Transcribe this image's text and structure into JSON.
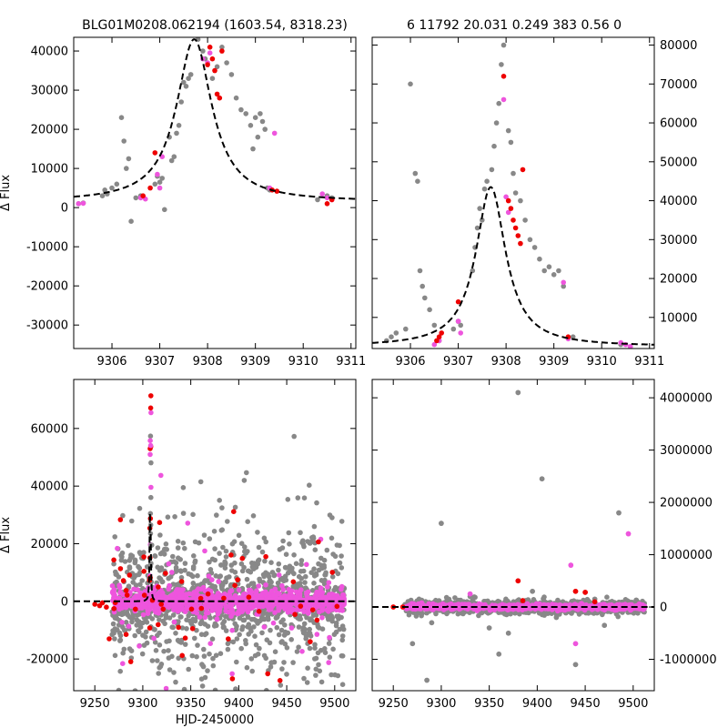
{
  "header": {
    "left_title": "BLG01M0208.062194 (1603.54, 8318.23)",
    "right_title": "6 11792 20.031 0.249 383  0.56    0"
  },
  "colors": {
    "gray": "#888888",
    "red": "#ee0000",
    "magenta": "#ee55dd",
    "model": "#000000"
  },
  "chart_data": [
    {
      "id": "top-left",
      "type": "scatter",
      "title": "BLG01M0208.062194 (1603.54, 8318.23)",
      "xlabel": "",
      "ylabel": "Δ Flux",
      "xlim": [
        9305.2,
        9311.1
      ],
      "ylim": [
        -36000,
        43500
      ],
      "xticks": [
        9306,
        9307,
        9308,
        9309,
        9310,
        9311
      ],
      "yticks": [
        -30000,
        -20000,
        -10000,
        0,
        10000,
        20000,
        30000,
        40000
      ],
      "yaxis_side": "left",
      "model": {
        "t0": 9307.72,
        "peak": 43000,
        "base": 1500,
        "width": 0.45
      },
      "series": [
        {
          "name": "gray",
          "points": [
            [
              9305.3,
              1000
            ],
            [
              9305.4,
              1200
            ],
            [
              9305.8,
              3000
            ],
            [
              9305.85,
              4500
            ],
            [
              9305.9,
              3500
            ],
            [
              9306.0,
              5000
            ],
            [
              9306.1,
              6000
            ],
            [
              9306.2,
              23000
            ],
            [
              9306.25,
              17000
            ],
            [
              9306.3,
              10000
            ],
            [
              9306.35,
              12500
            ],
            [
              9306.4,
              -3500
            ],
            [
              9306.5,
              2500
            ],
            [
              9306.6,
              3000
            ],
            [
              9306.9,
              6000
            ],
            [
              9306.95,
              8000
            ],
            [
              9307.0,
              6500
            ],
            [
              9307.05,
              7500
            ],
            [
              9307.1,
              -500
            ],
            [
              9307.2,
              18000
            ],
            [
              9307.25,
              12000
            ],
            [
              9307.3,
              13000
            ],
            [
              9307.35,
              19000
            ],
            [
              9307.4,
              21000
            ],
            [
              9307.45,
              27000
            ],
            [
              9307.5,
              32000
            ],
            [
              9307.55,
              31000
            ],
            [
              9307.6,
              33000
            ],
            [
              9307.65,
              34000
            ],
            [
              9307.7,
              44000
            ],
            [
              9307.75,
              44000
            ],
            [
              9307.8,
              43000
            ],
            [
              9307.9,
              40000
            ],
            [
              9307.95,
              38000
            ],
            [
              9308.1,
              33000
            ],
            [
              9308.2,
              36000
            ],
            [
              9308.3,
              41000
            ],
            [
              9308.4,
              37000
            ],
            [
              9308.5,
              34000
            ],
            [
              9308.6,
              28000
            ],
            [
              9308.7,
              25000
            ],
            [
              9308.8,
              24000
            ],
            [
              9308.9,
              21000
            ],
            [
              9308.95,
              15000
            ],
            [
              9309.0,
              23000
            ],
            [
              9309.05,
              18000
            ],
            [
              9309.1,
              24000
            ],
            [
              9309.15,
              22000
            ],
            [
              9309.2,
              20000
            ],
            [
              9309.25,
              5000
            ],
            [
              9309.3,
              4500
            ],
            [
              9310.3,
              2000
            ],
            [
              9310.5,
              3000
            ],
            [
              9310.6,
              2500
            ]
          ]
        },
        {
          "name": "red",
          "points": [
            [
              9306.65,
              3000
            ],
            [
              9306.8,
              5000
            ],
            [
              9306.9,
              14000
            ],
            [
              9308.0,
              36500
            ],
            [
              9308.05,
              41000
            ],
            [
              9308.1,
              38000
            ],
            [
              9308.15,
              35000
            ],
            [
              9308.2,
              29000
            ],
            [
              9308.25,
              28000
            ],
            [
              9308.3,
              40000
            ],
            [
              9309.35,
              4500
            ],
            [
              9309.45,
              4200
            ],
            [
              9310.5,
              1000
            ],
            [
              9310.6,
              2000
            ]
          ]
        },
        {
          "name": "magenta",
          "points": [
            [
              9305.3,
              1000
            ],
            [
              9305.4,
              1100
            ],
            [
              9306.6,
              2500
            ],
            [
              9306.7,
              2200
            ],
            [
              9306.95,
              8500
            ],
            [
              9307.0,
              5000
            ],
            [
              9307.05,
              13000
            ],
            [
              9307.9,
              38000
            ],
            [
              9308.0,
              37000
            ],
            [
              9308.05,
              39500
            ],
            [
              9309.3,
              5000
            ],
            [
              9309.4,
              19000
            ],
            [
              9310.4,
              3500
            ],
            [
              9310.5,
              2500
            ],
            [
              9310.6,
              2000
            ]
          ]
        }
      ]
    },
    {
      "id": "top-right",
      "type": "scatter",
      "title": "6 11792 20.031 0.249 383  0.56    0",
      "xlabel": "",
      "ylabel": "",
      "xlim": [
        9305.2,
        9311.1
      ],
      "ylim": [
        2000,
        82000
      ],
      "xticks": [
        9306,
        9307,
        9308,
        9309,
        9310,
        9311
      ],
      "yticks": [
        10000,
        20000,
        30000,
        40000,
        50000,
        60000,
        70000,
        80000
      ],
      "yaxis_side": "right",
      "model": {
        "t0": 9307.68,
        "peak": 43500,
        "base": 2500,
        "width": 0.38
      },
      "series": [
        {
          "name": "gray",
          "points": [
            [
              9305.5,
              4000
            ],
            [
              9305.6,
              5000
            ],
            [
              9305.7,
              6000
            ],
            [
              9305.9,
              7000
            ],
            [
              9306.0,
              70000
            ],
            [
              9306.1,
              47000
            ],
            [
              9306.15,
              45000
            ],
            [
              9306.2,
              22000
            ],
            [
              9306.25,
              18000
            ],
            [
              9306.3,
              15000
            ],
            [
              9306.4,
              12000
            ],
            [
              9306.5,
              8000
            ],
            [
              9306.6,
              4000
            ],
            [
              9306.9,
              7000
            ],
            [
              9307.0,
              9000
            ],
            [
              9307.05,
              8000
            ],
            [
              9307.3,
              22000
            ],
            [
              9307.35,
              28000
            ],
            [
              9307.4,
              33000
            ],
            [
              9307.45,
              38000
            ],
            [
              9307.5,
              35000
            ],
            [
              9307.55,
              43000
            ],
            [
              9307.6,
              45000
            ],
            [
              9307.7,
              48000
            ],
            [
              9307.75,
              54000
            ],
            [
              9307.8,
              60000
            ],
            [
              9307.85,
              65000
            ],
            [
              9307.9,
              75000
            ],
            [
              9307.95,
              80000
            ],
            [
              9308.05,
              58000
            ],
            [
              9308.1,
              55000
            ],
            [
              9308.15,
              47000
            ],
            [
              9308.2,
              42000
            ],
            [
              9308.3,
              40000
            ],
            [
              9308.4,
              35000
            ],
            [
              9308.5,
              30000
            ],
            [
              9308.6,
              28000
            ],
            [
              9308.7,
              25000
            ],
            [
              9308.8,
              22000
            ],
            [
              9308.9,
              23000
            ],
            [
              9309.0,
              21000
            ],
            [
              9309.1,
              22000
            ],
            [
              9309.2,
              18000
            ],
            [
              9309.4,
              5000
            ],
            [
              9310.4,
              3000
            ],
            [
              9310.6,
              2500
            ]
          ]
        },
        {
          "name": "red",
          "points": [
            [
              9306.55,
              4000
            ],
            [
              9306.6,
              5000
            ],
            [
              9306.65,
              6000
            ],
            [
              9307.0,
              14000
            ],
            [
              9307.95,
              72000
            ],
            [
              9308.05,
              40000
            ],
            [
              9308.1,
              38000
            ],
            [
              9308.15,
              35000
            ],
            [
              9308.2,
              33000
            ],
            [
              9308.25,
              31000
            ],
            [
              9308.3,
              29000
            ],
            [
              9308.35,
              48000
            ],
            [
              9309.3,
              5000
            ]
          ]
        },
        {
          "name": "magenta",
          "points": [
            [
              9306.5,
              3000
            ],
            [
              9306.6,
              4000
            ],
            [
              9307.0,
              9000
            ],
            [
              9307.05,
              6000
            ],
            [
              9307.95,
              66000
            ],
            [
              9308.0,
              41000
            ],
            [
              9308.05,
              37000
            ],
            [
              9309.2,
              19000
            ],
            [
              9309.3,
              4500
            ],
            [
              9310.4,
              3500
            ],
            [
              9310.5,
              3000
            ],
            [
              9310.6,
              2500
            ]
          ]
        }
      ]
    },
    {
      "id": "bottom-left",
      "type": "scatter",
      "title": "",
      "xlabel": "HJD-2450000",
      "ylabel": "Δ Flux",
      "xlim": [
        9228,
        9522
      ],
      "ylim": [
        -31000,
        77000
      ],
      "xticks": [
        9250,
        9300,
        9350,
        9400,
        9450,
        9500
      ],
      "yticks": [
        -20000,
        0,
        20000,
        40000,
        60000
      ],
      "yaxis_side": "left",
      "model": {
        "t0": 9307.7,
        "peak": 43000,
        "base": 0,
        "width": 0.5
      },
      "x_range": [
        9268,
        9510
      ],
      "spike_t": 9308,
      "spike_points": 22,
      "spread": {
        "gray_sigma": 15000,
        "red_sigma": 12000,
        "magenta_sigma": 2000
      },
      "counts": {
        "gray": 1300,
        "red": 55,
        "magenta": 900
      },
      "early_red": [
        [
          9250,
          -1000
        ],
        [
          9255,
          -1500
        ],
        [
          9258,
          -500
        ],
        [
          9262,
          -2000
        ],
        [
          9265,
          -13000
        ],
        [
          9270,
          -2500
        ]
      ],
      "series_names": [
        "gray",
        "red",
        "magenta"
      ]
    },
    {
      "id": "bottom-right",
      "type": "scatter",
      "title": "",
      "xlabel": "",
      "ylabel": "",
      "xlim": [
        9228,
        9522
      ],
      "ylim": [
        -1600000,
        4350000
      ],
      "xticks": [
        9250,
        9300,
        9350,
        9400,
        9450,
        9500
      ],
      "yticks": [
        -1000000,
        0,
        1000000,
        2000000,
        3000000,
        4000000
      ],
      "yaxis_side": "right",
      "model": {
        "t0": 9307.7,
        "peak": 43000,
        "base": 0,
        "width": 0.5
      },
      "series": [
        {
          "name": "gray",
          "points": [
            [
              9285,
              -1400000
            ],
            [
              9300,
              1600000
            ],
            [
              9350,
              -400000
            ],
            [
              9360,
              -900000
            ],
            [
              9380,
              4100000
            ],
            [
              9405,
              2450000
            ],
            [
              9440,
              -1100000
            ],
            [
              9485,
              1800000
            ],
            [
              9270,
              -700000
            ],
            [
              9330,
              200000
            ],
            [
              9420,
              -200000
            ],
            [
              9460,
              150000
            ],
            [
              9290,
              -300000
            ],
            [
              9370,
              -500000
            ],
            [
              9395,
              300000
            ],
            [
              9470,
              -350000
            ]
          ]
        },
        {
          "name": "red",
          "points": [
            [
              9250,
              0
            ],
            [
              9260,
              0
            ],
            [
              9380,
              500000
            ],
            [
              9385,
              120000
            ],
            [
              9440,
              300000
            ],
            [
              9450,
              280000
            ],
            [
              9460,
              100000
            ]
          ]
        },
        {
          "name": "magenta",
          "points": [
            [
              9330,
              250000
            ],
            [
              9440,
              -700000
            ],
            [
              9435,
              800000
            ],
            [
              9495,
              1400000
            ]
          ]
        }
      ],
      "dense_band": {
        "x_range": [
          9262,
          9512
        ],
        "gray_sigma": 60000,
        "magenta_sigma": 25000,
        "counts": {
          "gray": 1300,
          "magenta": 900
        }
      }
    }
  ]
}
